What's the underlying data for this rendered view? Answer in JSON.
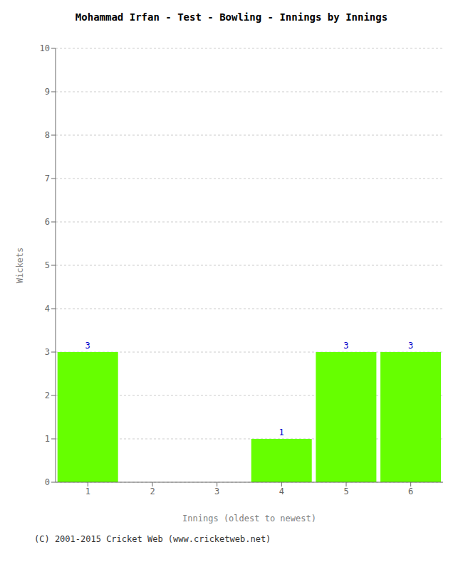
{
  "chart_data": {
    "type": "bar",
    "title": "Mohammad Irfan - Test - Bowling - Innings by Innings",
    "xlabel": "Innings (oldest to newest)",
    "ylabel": "Wickets",
    "categories": [
      "1",
      "2",
      "3",
      "4",
      "5",
      "6"
    ],
    "values": [
      3,
      0,
      0,
      1,
      3,
      3
    ],
    "color": "#66ff00",
    "ylim": [
      0,
      10
    ],
    "yticks": [
      0,
      1,
      2,
      3,
      4,
      5,
      6,
      7,
      8,
      9,
      10
    ],
    "grid": true,
    "data_labels": true,
    "annotations": [
      "(C) 2001-2015 Cricket Web (www.cricketweb.net)"
    ]
  }
}
